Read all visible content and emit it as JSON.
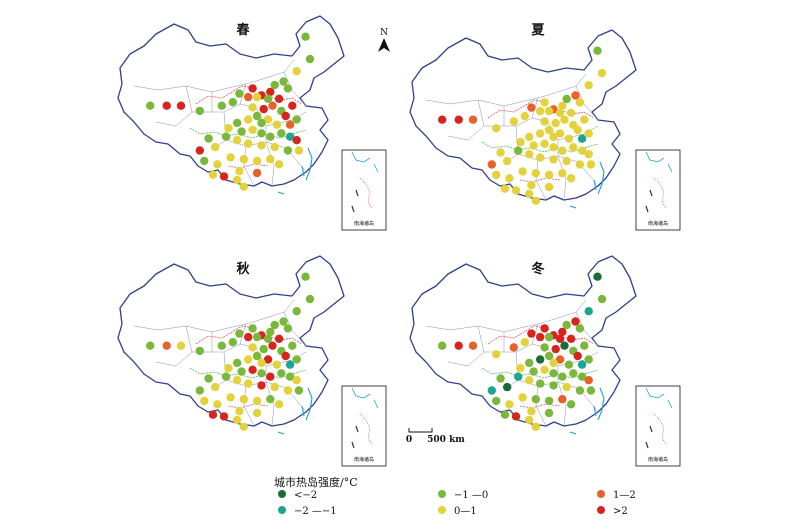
{
  "maps": [
    {
      "title": "春",
      "points": [
        [
          0.155,
          0.52,
          "g"
        ],
        [
          0.23,
          0.52,
          "r"
        ],
        [
          0.295,
          0.52,
          "r"
        ],
        [
          0.38,
          0.55,
          "g"
        ],
        [
          0.48,
          0.52,
          "g"
        ],
        [
          0.53,
          0.5,
          "g"
        ],
        [
          0.56,
          0.45,
          "g"
        ],
        [
          0.6,
          0.47,
          "o"
        ],
        [
          0.62,
          0.42,
          "r"
        ],
        [
          0.66,
          0.46,
          "r"
        ],
        [
          0.7,
          0.44,
          "r"
        ],
        [
          0.72,
          0.4,
          "g"
        ],
        [
          0.76,
          0.38,
          "g"
        ],
        [
          0.74,
          0.48,
          "r"
        ],
        [
          0.78,
          0.42,
          "g"
        ],
        [
          0.62,
          0.53,
          "y"
        ],
        [
          0.67,
          0.54,
          "r"
        ],
        [
          0.71,
          0.52,
          "o"
        ],
        [
          0.75,
          0.55,
          "g"
        ],
        [
          0.77,
          0.58,
          "r"
        ],
        [
          0.8,
          0.52,
          "r"
        ],
        [
          0.82,
          0.6,
          "g"
        ],
        [
          0.79,
          0.63,
          "o"
        ],
        [
          0.6,
          0.6,
          "y"
        ],
        [
          0.64,
          0.58,
          "g"
        ],
        [
          0.69,
          0.6,
          "y"
        ],
        [
          0.73,
          0.63,
          "y"
        ],
        [
          0.55,
          0.62,
          "g"
        ],
        [
          0.51,
          0.65,
          "y"
        ],
        [
          0.57,
          0.67,
          "g"
        ],
        [
          0.62,
          0.66,
          "y"
        ],
        [
          0.66,
          0.68,
          "g"
        ],
        [
          0.7,
          0.7,
          "g"
        ],
        [
          0.75,
          0.68,
          "g"
        ],
        [
          0.79,
          0.7,
          "t"
        ],
        [
          0.82,
          0.72,
          "r"
        ],
        [
          0.83,
          0.78,
          "y"
        ],
        [
          0.78,
          0.78,
          "g"
        ],
        [
          0.72,
          0.76,
          "y"
        ],
        [
          0.66,
          0.75,
          "y"
        ],
        [
          0.6,
          0.74,
          "y"
        ],
        [
          0.55,
          0.72,
          "y"
        ],
        [
          0.5,
          0.7,
          "g"
        ],
        [
          0.45,
          0.76,
          "y"
        ],
        [
          0.42,
          0.71,
          "g"
        ],
        [
          0.38,
          0.78,
          "r"
        ],
        [
          0.4,
          0.84,
          "g"
        ],
        [
          0.46,
          0.86,
          "y"
        ],
        [
          0.52,
          0.82,
          "y"
        ],
        [
          0.58,
          0.83,
          "y"
        ],
        [
          0.64,
          0.84,
          "y"
        ],
        [
          0.7,
          0.83,
          "y"
        ],
        [
          0.74,
          0.86,
          "y"
        ],
        [
          0.56,
          0.9,
          "y"
        ],
        [
          0.64,
          0.91,
          "o"
        ],
        [
          0.49,
          0.93,
          "r"
        ],
        [
          0.55,
          0.95,
          "y"
        ],
        [
          0.58,
          0.99,
          "y"
        ],
        [
          0.44,
          0.92,
          "y"
        ],
        [
          0.66,
          0.62,
          "g"
        ],
        [
          0.64,
          0.47,
          "y"
        ],
        [
          0.69,
          0.48,
          "g"
        ],
        [
          0.86,
          0.12,
          "g"
        ],
        [
          0.88,
          0.25,
          "g"
        ],
        [
          0.82,
          0.32,
          "y"
        ]
      ]
    },
    {
      "title": "夏",
      "points": [
        [
          0.155,
          0.52,
          "r"
        ],
        [
          0.23,
          0.52,
          "r"
        ],
        [
          0.295,
          0.52,
          "o"
        ],
        [
          0.4,
          0.57,
          "y"
        ],
        [
          0.48,
          0.53,
          "y"
        ],
        [
          0.53,
          0.5,
          "y"
        ],
        [
          0.56,
          0.45,
          "o"
        ],
        [
          0.6,
          0.47,
          "y"
        ],
        [
          0.62,
          0.42,
          "y"
        ],
        [
          0.66,
          0.46,
          "o"
        ],
        [
          0.7,
          0.44,
          "y"
        ],
        [
          0.72,
          0.4,
          "g"
        ],
        [
          0.76,
          0.38,
          "o"
        ],
        [
          0.74,
          0.48,
          "y"
        ],
        [
          0.78,
          0.42,
          "y"
        ],
        [
          0.62,
          0.53,
          "y"
        ],
        [
          0.67,
          0.54,
          "y"
        ],
        [
          0.71,
          0.52,
          "y"
        ],
        [
          0.75,
          0.55,
          "y"
        ],
        [
          0.77,
          0.58,
          "y"
        ],
        [
          0.8,
          0.52,
          "y"
        ],
        [
          0.82,
          0.6,
          "y"
        ],
        [
          0.79,
          0.63,
          "t"
        ],
        [
          0.6,
          0.6,
          "y"
        ],
        [
          0.64,
          0.58,
          "y"
        ],
        [
          0.69,
          0.6,
          "y"
        ],
        [
          0.73,
          0.63,
          "y"
        ],
        [
          0.55,
          0.62,
          "y"
        ],
        [
          0.51,
          0.65,
          "y"
        ],
        [
          0.57,
          0.67,
          "y"
        ],
        [
          0.62,
          0.66,
          "y"
        ],
        [
          0.66,
          0.68,
          "y"
        ],
        [
          0.7,
          0.7,
          "y"
        ],
        [
          0.75,
          0.68,
          "y"
        ],
        [
          0.79,
          0.7,
          "y"
        ],
        [
          0.82,
          0.72,
          "y"
        ],
        [
          0.83,
          0.78,
          "y"
        ],
        [
          0.78,
          0.78,
          "y"
        ],
        [
          0.72,
          0.76,
          "y"
        ],
        [
          0.66,
          0.75,
          "y"
        ],
        [
          0.6,
          0.74,
          "y"
        ],
        [
          0.55,
          0.72,
          "y"
        ],
        [
          0.5,
          0.7,
          "g"
        ],
        [
          0.45,
          0.76,
          "y"
        ],
        [
          0.42,
          0.71,
          "y"
        ],
        [
          0.38,
          0.78,
          "o"
        ],
        [
          0.4,
          0.84,
          "y"
        ],
        [
          0.46,
          0.86,
          "y"
        ],
        [
          0.52,
          0.82,
          "y"
        ],
        [
          0.58,
          0.83,
          "y"
        ],
        [
          0.64,
          0.84,
          "y"
        ],
        [
          0.7,
          0.83,
          "y"
        ],
        [
          0.74,
          0.86,
          "y"
        ],
        [
          0.56,
          0.9,
          "y"
        ],
        [
          0.64,
          0.91,
          "y"
        ],
        [
          0.49,
          0.93,
          "y"
        ],
        [
          0.55,
          0.95,
          "y"
        ],
        [
          0.58,
          0.99,
          "y"
        ],
        [
          0.44,
          0.92,
          "y"
        ],
        [
          0.66,
          0.62,
          "y"
        ],
        [
          0.64,
          0.47,
          "y"
        ],
        [
          0.69,
          0.48,
          "y"
        ],
        [
          0.86,
          0.12,
          "g"
        ],
        [
          0.88,
          0.25,
          "y"
        ],
        [
          0.82,
          0.32,
          "y"
        ]
      ]
    },
    {
      "title": "秋",
      "points": [
        [
          0.155,
          0.52,
          "g"
        ],
        [
          0.23,
          0.52,
          "o"
        ],
        [
          0.295,
          0.52,
          "y"
        ],
        [
          0.38,
          0.55,
          "g"
        ],
        [
          0.48,
          0.52,
          "g"
        ],
        [
          0.53,
          0.5,
          "g"
        ],
        [
          0.56,
          0.45,
          "g"
        ],
        [
          0.6,
          0.47,
          "r"
        ],
        [
          0.62,
          0.42,
          "g"
        ],
        [
          0.66,
          0.46,
          "r"
        ],
        [
          0.7,
          0.44,
          "g"
        ],
        [
          0.72,
          0.4,
          "g"
        ],
        [
          0.76,
          0.38,
          "g"
        ],
        [
          0.74,
          0.48,
          "r"
        ],
        [
          0.78,
          0.42,
          "g"
        ],
        [
          0.62,
          0.53,
          "y"
        ],
        [
          0.67,
          0.54,
          "g"
        ],
        [
          0.71,
          0.52,
          "r"
        ],
        [
          0.75,
          0.55,
          "g"
        ],
        [
          0.77,
          0.58,
          "r"
        ],
        [
          0.8,
          0.52,
          "g"
        ],
        [
          0.82,
          0.6,
          "g"
        ],
        [
          0.79,
          0.63,
          "t"
        ],
        [
          0.6,
          0.6,
          "y"
        ],
        [
          0.64,
          0.58,
          "g"
        ],
        [
          0.69,
          0.6,
          "r"
        ],
        [
          0.73,
          0.63,
          "y"
        ],
        [
          0.55,
          0.62,
          "g"
        ],
        [
          0.51,
          0.65,
          "y"
        ],
        [
          0.57,
          0.67,
          "g"
        ],
        [
          0.62,
          0.66,
          "r"
        ],
        [
          0.66,
          0.68,
          "g"
        ],
        [
          0.7,
          0.7,
          "r"
        ],
        [
          0.75,
          0.68,
          "g"
        ],
        [
          0.79,
          0.7,
          "g"
        ],
        [
          0.82,
          0.72,
          "y"
        ],
        [
          0.83,
          0.78,
          "g"
        ],
        [
          0.78,
          0.78,
          "y"
        ],
        [
          0.72,
          0.76,
          "y"
        ],
        [
          0.66,
          0.75,
          "r"
        ],
        [
          0.6,
          0.74,
          "y"
        ],
        [
          0.55,
          0.72,
          "y"
        ],
        [
          0.5,
          0.7,
          "g"
        ],
        [
          0.45,
          0.76,
          "y"
        ],
        [
          0.42,
          0.71,
          "g"
        ],
        [
          0.38,
          0.78,
          "g"
        ],
        [
          0.4,
          0.84,
          "y"
        ],
        [
          0.46,
          0.86,
          "y"
        ],
        [
          0.52,
          0.82,
          "y"
        ],
        [
          0.58,
          0.83,
          "y"
        ],
        [
          0.64,
          0.84,
          "y"
        ],
        [
          0.7,
          0.83,
          "g"
        ],
        [
          0.74,
          0.86,
          "y"
        ],
        [
          0.56,
          0.9,
          "y"
        ],
        [
          0.64,
          0.91,
          "y"
        ],
        [
          0.49,
          0.93,
          "r"
        ],
        [
          0.55,
          0.95,
          "y"
        ],
        [
          0.58,
          0.99,
          "y"
        ],
        [
          0.44,
          0.92,
          "r"
        ],
        [
          0.66,
          0.62,
          "y"
        ],
        [
          0.64,
          0.47,
          "g"
        ],
        [
          0.69,
          0.48,
          "g"
        ],
        [
          0.86,
          0.12,
          "g"
        ],
        [
          0.88,
          0.25,
          "g"
        ],
        [
          0.82,
          0.32,
          "g"
        ]
      ]
    },
    {
      "title": "冬",
      "points": [
        [
          0.155,
          0.52,
          "g"
        ],
        [
          0.23,
          0.52,
          "r"
        ],
        [
          0.295,
          0.52,
          "o"
        ],
        [
          0.4,
          0.57,
          "y"
        ],
        [
          0.48,
          0.53,
          "o"
        ],
        [
          0.53,
          0.5,
          "y"
        ],
        [
          0.56,
          0.45,
          "r"
        ],
        [
          0.6,
          0.47,
          "r"
        ],
        [
          0.62,
          0.42,
          "r"
        ],
        [
          0.66,
          0.46,
          "r"
        ],
        [
          0.7,
          0.44,
          "r"
        ],
        [
          0.72,
          0.4,
          "g"
        ],
        [
          0.76,
          0.38,
          "r"
        ],
        [
          0.74,
          0.48,
          "r"
        ],
        [
          0.78,
          0.42,
          "g"
        ],
        [
          0.62,
          0.53,
          "g"
        ],
        [
          0.67,
          0.54,
          "r"
        ],
        [
          0.71,
          0.52,
          "d"
        ],
        [
          0.75,
          0.55,
          "g"
        ],
        [
          0.77,
          0.58,
          "r"
        ],
        [
          0.8,
          0.52,
          "g"
        ],
        [
          0.82,
          0.6,
          "g"
        ],
        [
          0.79,
          0.63,
          "t"
        ],
        [
          0.6,
          0.6,
          "d"
        ],
        [
          0.64,
          0.58,
          "g"
        ],
        [
          0.69,
          0.6,
          "o"
        ],
        [
          0.73,
          0.63,
          "g"
        ],
        [
          0.55,
          0.62,
          "g"
        ],
        [
          0.51,
          0.65,
          "y"
        ],
        [
          0.57,
          0.67,
          "g"
        ],
        [
          0.62,
          0.66,
          "y"
        ],
        [
          0.66,
          0.68,
          "g"
        ],
        [
          0.7,
          0.7,
          "g"
        ],
        [
          0.75,
          0.68,
          "g"
        ],
        [
          0.79,
          0.7,
          "g"
        ],
        [
          0.82,
          0.72,
          "o"
        ],
        [
          0.83,
          0.78,
          "g"
        ],
        [
          0.78,
          0.78,
          "g"
        ],
        [
          0.72,
          0.76,
          "y"
        ],
        [
          0.66,
          0.75,
          "g"
        ],
        [
          0.6,
          0.74,
          "g"
        ],
        [
          0.55,
          0.72,
          "y"
        ],
        [
          0.5,
          0.7,
          "t"
        ],
        [
          0.45,
          0.76,
          "d"
        ],
        [
          0.42,
          0.71,
          "g"
        ],
        [
          0.38,
          0.78,
          "t"
        ],
        [
          0.4,
          0.84,
          "g"
        ],
        [
          0.46,
          0.86,
          "y"
        ],
        [
          0.52,
          0.82,
          "y"
        ],
        [
          0.58,
          0.83,
          "g"
        ],
        [
          0.64,
          0.84,
          "g"
        ],
        [
          0.7,
          0.83,
          "o"
        ],
        [
          0.74,
          0.86,
          "g"
        ],
        [
          0.56,
          0.9,
          "y"
        ],
        [
          0.64,
          0.91,
          "g"
        ],
        [
          0.49,
          0.93,
          "r"
        ],
        [
          0.55,
          0.95,
          "y"
        ],
        [
          0.58,
          0.99,
          "y"
        ],
        [
          0.44,
          0.92,
          "g"
        ],
        [
          0.66,
          0.62,
          "y"
        ],
        [
          0.64,
          0.47,
          "g"
        ],
        [
          0.69,
          0.48,
          "r"
        ],
        [
          0.86,
          0.12,
          "d"
        ],
        [
          0.88,
          0.25,
          "g"
        ],
        [
          0.82,
          0.32,
          "t"
        ]
      ]
    }
  ],
  "north_label": "N",
  "scale": {
    "zero": "0",
    "distance": "500 km"
  },
  "inset_label": "南海诸岛",
  "legend": {
    "title": "城市热岛强度/°C",
    "items": [
      {
        "key": "d",
        "label": "<−2",
        "color": "#1b6b35"
      },
      {
        "key": "t",
        "label": "−2 —−1",
        "color": "#1ea58f"
      },
      {
        "key": "g",
        "label": "−1 —0",
        "color": "#7ab83c"
      },
      {
        "key": "y",
        "label": "0—1",
        "color": "#e3d23c"
      },
      {
        "key": "o",
        "label": "1—2",
        "color": "#e8602a"
      },
      {
        "key": "r",
        "label": ">2",
        "color": "#d8241e"
      }
    ]
  }
}
